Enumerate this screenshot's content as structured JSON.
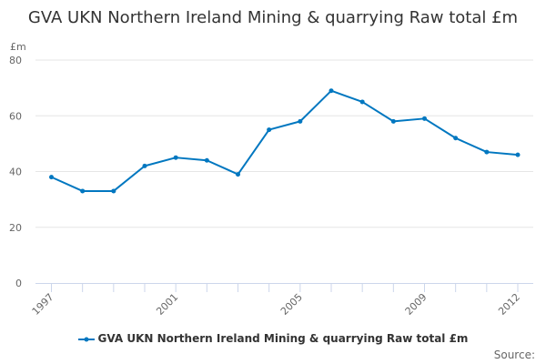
{
  "chart_data": {
    "type": "line",
    "title": "GVA UKN Northern Ireland Mining & quarrying Raw total £m",
    "ylabel": "£m",
    "xlabel": "",
    "ylim": [
      0,
      80
    ],
    "yticks": [
      0,
      20,
      40,
      60,
      80
    ],
    "xtick_labels": [
      "1997",
      "2001",
      "2005",
      "2009",
      "2012"
    ],
    "x": [
      1997,
      1998,
      1999,
      2000,
      2001,
      2002,
      2003,
      2004,
      2005,
      2006,
      2007,
      2008,
      2009,
      2010,
      2011,
      2012
    ],
    "series": [
      {
        "name": "GVA UKN Northern Ireland Mining & quarrying Raw total £m",
        "values": [
          38,
          33,
          33,
          42,
          45,
          44,
          39,
          55,
          58,
          69,
          65,
          58,
          59,
          52,
          47,
          46
        ],
        "color": "#0077c0"
      }
    ],
    "grid": true,
    "legend_position": "bottom"
  },
  "source_label": "Source:"
}
